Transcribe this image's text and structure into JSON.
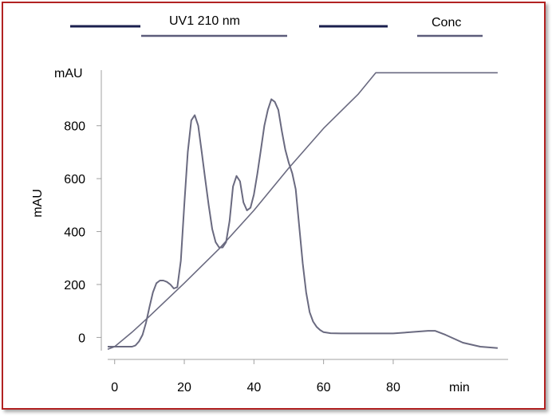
{
  "chart_data": {
    "type": "line",
    "title": "",
    "xlabel": "",
    "ylabel": "mAU",
    "y_unit_label": "mAU",
    "x_unit_label": "min",
    "xlim": [
      -2,
      113
    ],
    "ylim": [
      -50,
      1010
    ],
    "x_ticks": [
      0,
      20,
      40,
      60,
      80
    ],
    "y_ticks": [
      0,
      200,
      400,
      600,
      800
    ],
    "grid": false,
    "legend": {
      "position": "top",
      "entries": [
        {
          "label": "",
          "color": "#1a1f4e",
          "style": "thick"
        },
        {
          "label": "UV1  210 nm",
          "color": "#5c5c7a",
          "style": "thin"
        },
        {
          "label": "",
          "color": "#1a1f4e",
          "style": "thick"
        },
        {
          "label": "Conc",
          "color": "#5c5c7a",
          "style": "thin"
        }
      ]
    },
    "series": [
      {
        "name": "UV1  210 nm",
        "color": "#6a6a80",
        "x": [
          -2,
          5,
          6,
          7,
          8,
          9,
          10,
          11,
          12,
          13,
          14,
          15,
          16,
          17,
          18,
          19,
          20,
          21,
          22,
          23,
          24,
          25,
          26,
          27,
          28,
          29,
          30,
          31,
          32,
          33,
          34,
          35,
          36,
          37,
          38,
          39,
          40,
          41,
          42,
          43,
          44,
          45,
          46,
          47,
          48,
          49,
          50,
          51,
          52,
          53,
          54,
          55,
          56,
          57,
          58,
          59,
          60,
          62,
          65,
          70,
          75,
          80,
          85,
          90,
          92,
          95,
          100,
          105,
          110
        ],
        "y": [
          -35,
          -35,
          -30,
          -15,
          10,
          55,
          115,
          170,
          205,
          215,
          215,
          210,
          200,
          185,
          190,
          290,
          500,
          700,
          820,
          840,
          800,
          700,
          600,
          500,
          410,
          360,
          340,
          340,
          360,
          440,
          570,
          610,
          590,
          510,
          480,
          490,
          540,
          620,
          710,
          800,
          860,
          900,
          890,
          860,
          780,
          710,
          660,
          620,
          560,
          420,
          280,
          170,
          95,
          60,
          40,
          28,
          20,
          16,
          15,
          15,
          15,
          15,
          20,
          25,
          25,
          10,
          -20,
          -35,
          -40
        ]
      },
      {
        "name": "Conc",
        "color": "#6a6a80",
        "x": [
          -2,
          0,
          5,
          10,
          20,
          30,
          40,
          50,
          60,
          70,
          75,
          80,
          90,
          100,
          110
        ],
        "y": [
          -45,
          -35,
          20,
          80,
          205,
          335,
          480,
          640,
          790,
          920,
          1000,
          1000,
          1000,
          1000,
          1000
        ]
      }
    ]
  }
}
